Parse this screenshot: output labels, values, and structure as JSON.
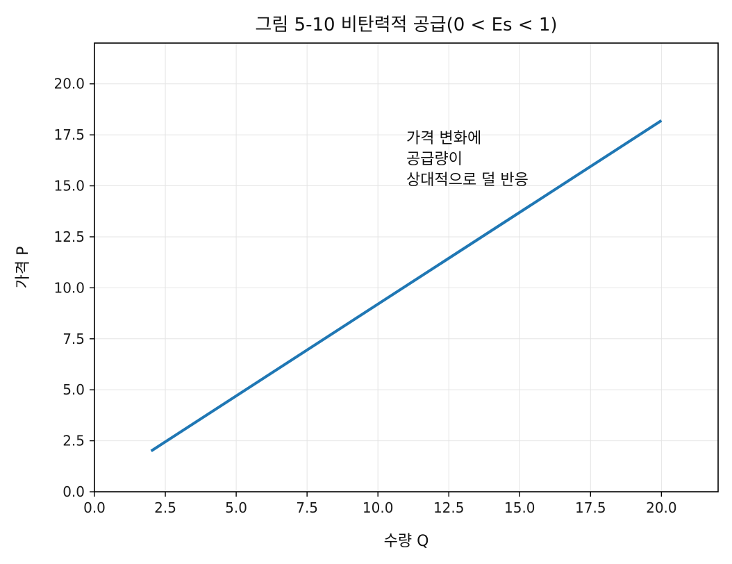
{
  "chart_data": {
    "type": "line",
    "title": "그림 5-10  비탄력적 공급(0 < Es < 1)",
    "xlabel": "수량 Q",
    "ylabel": "가격 P",
    "xlim": [
      0,
      22
    ],
    "ylim": [
      0,
      22
    ],
    "xticks": [
      "0.0",
      "2.5",
      "5.0",
      "7.5",
      "10.0",
      "12.5",
      "15.0",
      "17.5",
      "20.0"
    ],
    "yticks": [
      "0.0",
      "2.5",
      "5.0",
      "7.5",
      "10.0",
      "12.5",
      "15.0",
      "17.5",
      "20.0"
    ],
    "grid": true,
    "series": [
      {
        "x": [
          2,
          20
        ],
        "y": [
          2,
          18.2
        ],
        "color": "#1f77b4"
      }
    ],
    "annotations": [
      {
        "x": 11,
        "y": 17.1,
        "lines": [
          "가격 변화에",
          "공급량이",
          "상대적으로 덜 반응"
        ]
      }
    ]
  }
}
